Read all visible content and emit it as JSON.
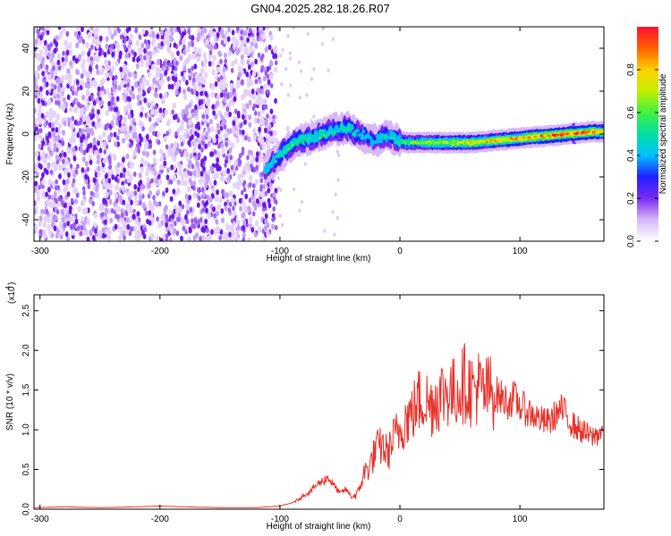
{
  "title": "GN04.2025.282.18.26.R07",
  "chart_data": [
    {
      "type": "heatmap",
      "xlabel": "Height of straight line (km)",
      "ylabel": "Frequency (Hz)",
      "xlim": [
        -305,
        170
      ],
      "ylim": [
        -50,
        50
      ],
      "x_ticks": [
        -300,
        -200,
        -100,
        0,
        100
      ],
      "y_ticks": [
        -40,
        -20,
        0,
        20,
        40
      ],
      "colorbar": {
        "label": "Normalized spectral amplitude",
        "range": [
          0,
          1
        ],
        "ticks": [
          "0.0",
          "0.2",
          "0.4",
          "0.6",
          "0.8"
        ],
        "colors": [
          "#ffffff",
          "#d8b8f8",
          "#7a2cf0",
          "#2020ff",
          "#00c0ff",
          "#00e0a0",
          "#40f040",
          "#c0f000",
          "#ffd000",
          "#ff6000",
          "#ff1030"
        ]
      },
      "noise_region_x": [
        -305,
        -103
      ],
      "signal_track": [
        {
          "x": -112,
          "y": -17,
          "amp": 0.4
        },
        {
          "x": -105,
          "y": -13,
          "amp": 0.45
        },
        {
          "x": -95,
          "y": -7,
          "amp": 0.5
        },
        {
          "x": -85,
          "y": -3,
          "amp": 0.5
        },
        {
          "x": -75,
          "y": -2,
          "amp": 0.45
        },
        {
          "x": -65,
          "y": 0,
          "amp": 0.5
        },
        {
          "x": -55,
          "y": 2,
          "amp": 0.45
        },
        {
          "x": -45,
          "y": 3,
          "amp": 0.5
        },
        {
          "x": -38,
          "y": 1,
          "amp": 0.45
        },
        {
          "x": -30,
          "y": -1,
          "amp": 0.4
        },
        {
          "x": -22,
          "y": -3,
          "amp": 0.4
        },
        {
          "x": -15,
          "y": -2,
          "amp": 0.45
        },
        {
          "x": -8,
          "y": -1,
          "amp": 0.4
        },
        {
          "x": -2,
          "y": -3,
          "amp": 0.5
        },
        {
          "x": 5,
          "y": -4,
          "amp": 0.6
        },
        {
          "x": 20,
          "y": -4,
          "amp": 0.65
        },
        {
          "x": 40,
          "y": -4,
          "amp": 0.7
        },
        {
          "x": 60,
          "y": -4,
          "amp": 0.75
        },
        {
          "x": 80,
          "y": -3,
          "amp": 0.75
        },
        {
          "x": 100,
          "y": -2,
          "amp": 0.8
        },
        {
          "x": 120,
          "y": -1,
          "amp": 0.85
        },
        {
          "x": 140,
          "y": 0,
          "amp": 0.9
        },
        {
          "x": 160,
          "y": 1,
          "amp": 0.85
        },
        {
          "x": 170,
          "y": 1,
          "amp": 0.8
        }
      ]
    },
    {
      "type": "line",
      "xlabel": "Height of straight line (km)",
      "ylabel": "SNR (10 * v/v)",
      "y_multiplier": "(x10",
      "y_multiplier_exp": "4",
      "xlim": [
        -305,
        170
      ],
      "ylim": [
        0,
        2.7
      ],
      "x_ticks": [
        -300,
        -200,
        -100,
        0,
        100
      ],
      "y_ticks": [
        "0.0",
        "0.5",
        "1.0",
        "1.5",
        "2.0",
        "2.5"
      ],
      "series": [
        {
          "color": "#e8302a",
          "x": [
            -305,
            -280,
            -250,
            -220,
            -200,
            -180,
            -150,
            -120,
            -110,
            -100,
            -95,
            -90,
            -85,
            -80,
            -75,
            -70,
            -65,
            -60,
            -55,
            -50,
            -45,
            -40,
            -35,
            -30,
            -25,
            -20,
            -15,
            -10,
            -5,
            0,
            5,
            10,
            15,
            20,
            25,
            30,
            35,
            40,
            45,
            50,
            55,
            60,
            65,
            70,
            75,
            80,
            85,
            90,
            95,
            100,
            105,
            110,
            115,
            120,
            125,
            130,
            135,
            140,
            145,
            150,
            155,
            160,
            165,
            170
          ],
          "y": [
            0.02,
            0.03,
            0.02,
            0.03,
            0.04,
            0.03,
            0.02,
            0.02,
            0.03,
            0.04,
            0.06,
            0.08,
            0.12,
            0.18,
            0.22,
            0.3,
            0.35,
            0.4,
            0.3,
            0.2,
            0.25,
            0.15,
            0.2,
            0.45,
            0.55,
            0.75,
            0.8,
            0.7,
            0.9,
            1.0,
            1.15,
            1.2,
            1.35,
            1.4,
            1.3,
            1.4,
            1.45,
            1.5,
            1.45,
            1.55,
            1.6,
            1.5,
            1.55,
            1.45,
            1.5,
            1.45,
            1.4,
            1.35,
            1.4,
            1.3,
            1.25,
            1.2,
            1.15,
            1.1,
            1.1,
            1.2,
            1.25,
            1.15,
            1.05,
            1.0,
            0.95,
            0.9,
            0.95,
            1.0
          ]
        }
      ]
    }
  ]
}
